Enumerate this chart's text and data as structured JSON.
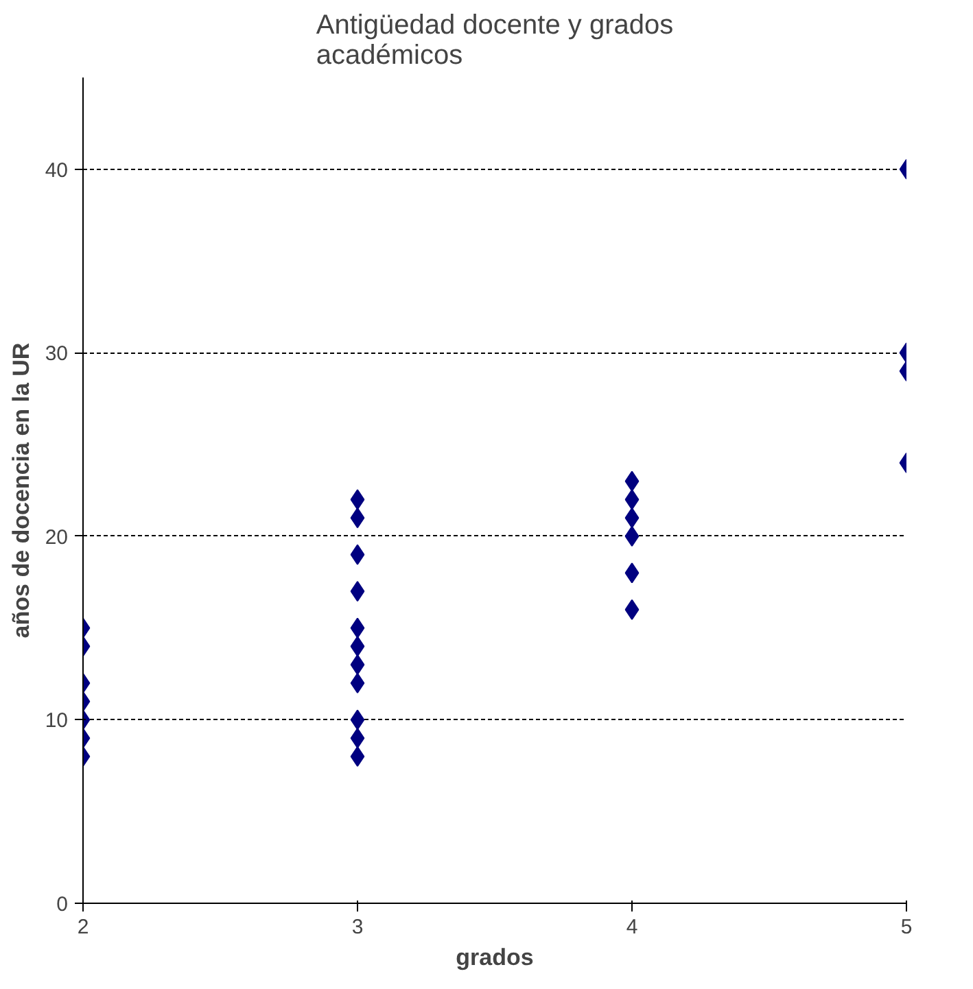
{
  "chart_data": {
    "type": "scatter",
    "title": "Antigüedad docente y grados académicos",
    "xlabel": "grados",
    "ylabel": "años de docencia en la UR",
    "x": [
      2,
      2,
      2,
      2,
      2,
      2,
      2,
      3,
      3,
      3,
      3,
      3,
      3,
      3,
      3,
      3,
      3,
      3,
      4,
      4,
      4,
      4,
      4,
      4,
      5,
      5,
      5,
      5
    ],
    "values": [
      15,
      14,
      12,
      11,
      10,
      9,
      8,
      22,
      21,
      19,
      17,
      15,
      14,
      13,
      12,
      10,
      9,
      8,
      23,
      22,
      21,
      20,
      18,
      16,
      40,
      30,
      29,
      24
    ],
    "color": "#000080",
    "marker": "diamond",
    "xlim": [
      2,
      5
    ],
    "ylim": [
      0,
      45
    ],
    "xticks": [
      2,
      3,
      4,
      5
    ],
    "yticks": [
      0,
      10,
      20,
      30,
      40
    ],
    "grid": "y"
  }
}
